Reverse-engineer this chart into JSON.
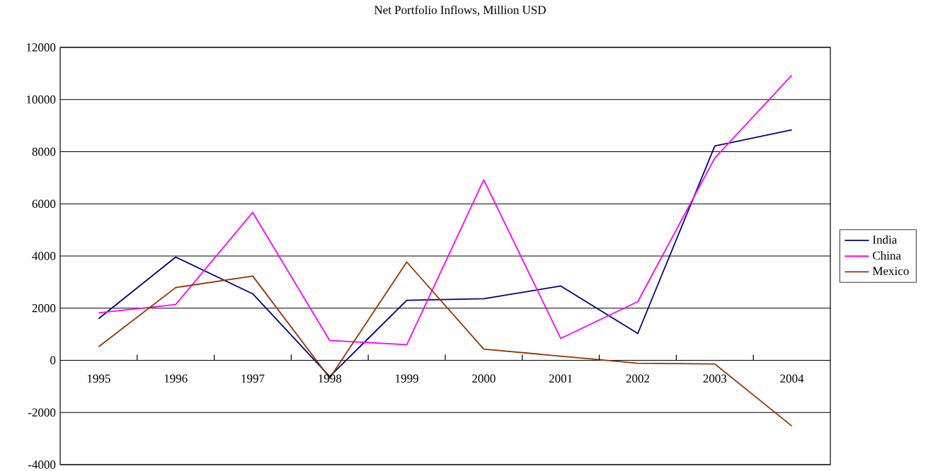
{
  "chart_data": {
    "type": "line",
    "title": "Net Portfolio Inflows, Million USD",
    "categories": [
      "1995",
      "1996",
      "1997",
      "1998",
      "1999",
      "2000",
      "2001",
      "2002",
      "2003",
      "2004"
    ],
    "series": [
      {
        "name": "India",
        "color": "#000080",
        "values": [
          1600,
          3960,
          2550,
          -620,
          2300,
          2360,
          2850,
          1030,
          8220,
          8840
        ]
      },
      {
        "name": "China",
        "color": "#ff00ff",
        "values": [
          1820,
          2140,
          5670,
          760,
          600,
          6920,
          840,
          2250,
          7760,
          10930
        ]
      },
      {
        "name": "Mexico",
        "color": "#993300",
        "values": [
          520,
          2790,
          3230,
          -680,
          3770,
          430,
          160,
          -110,
          -140,
          -2520
        ]
      }
    ],
    "ylim": [
      -4000,
      12000
    ],
    "yticks": [
      -4000,
      -2000,
      0,
      2000,
      4000,
      6000,
      8000,
      10000,
      12000
    ],
    "grid": "y",
    "legend": "right",
    "marker": "none",
    "line_style": "solid"
  }
}
